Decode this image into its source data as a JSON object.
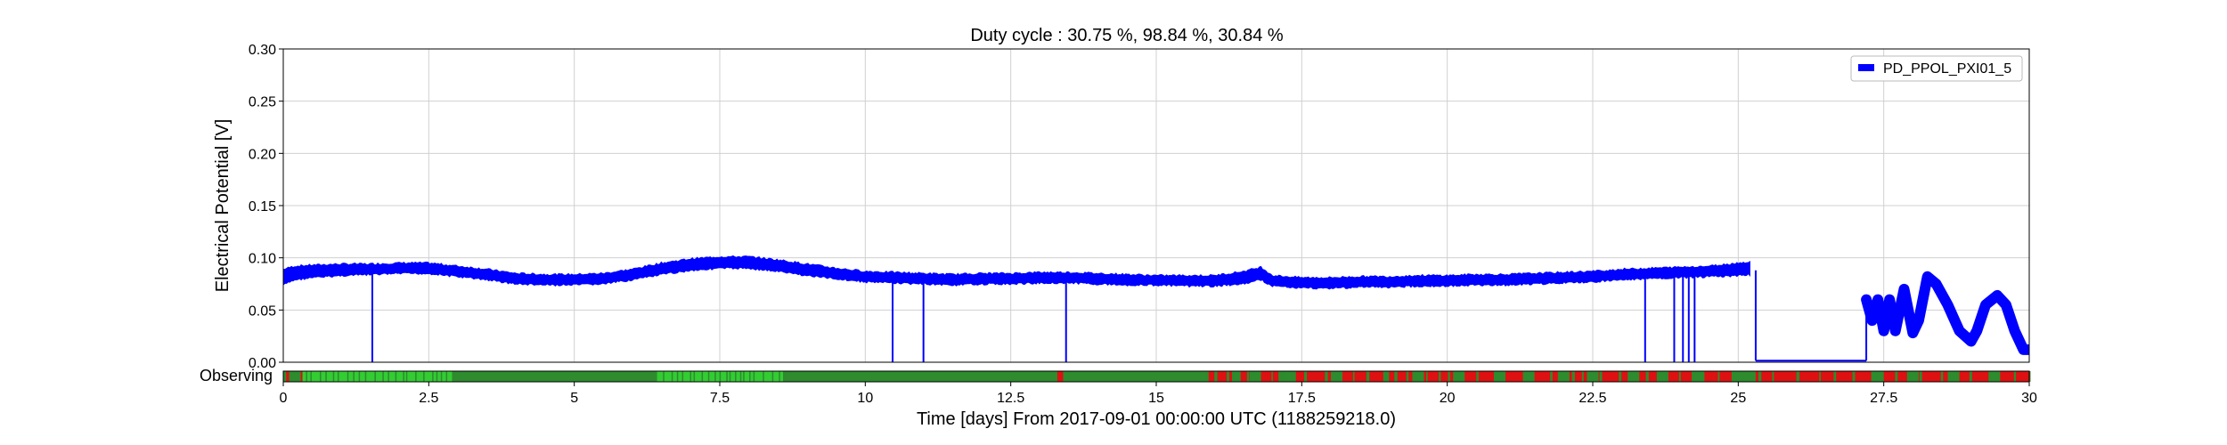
{
  "chart_data": {
    "type": "line",
    "title": "Duty cycle : 30.75 %, 98.84 %, 30.84 %",
    "xlabel": "Time [days] From 2017-09-01 00:00:00 UTC (1188259218.0)",
    "ylabel": "Electrical Potential [V]",
    "xlim": [
      0,
      30
    ],
    "ylim": [
      0,
      0.3
    ],
    "grid": true,
    "legend_position": "top-right",
    "x_ticks": [
      "0",
      "2.5",
      "5",
      "7.5",
      "10",
      "12.5",
      "15",
      "17.5",
      "20",
      "22.5",
      "25",
      "27.5",
      "30"
    ],
    "y_ticks": [
      "0.00",
      "0.05",
      "0.10",
      "0.15",
      "0.20",
      "0.25",
      "0.30"
    ],
    "series": [
      {
        "name": "PD_PPOL_PXI01_5",
        "color": "#0000ff",
        "band": [
          [
            0.0,
            0.075,
            0.088
          ],
          [
            0.2,
            0.08,
            0.091
          ],
          [
            0.5,
            0.082,
            0.092
          ],
          [
            1.0,
            0.084,
            0.093
          ],
          [
            1.5,
            0.085,
            0.093
          ],
          [
            2.0,
            0.086,
            0.094
          ],
          [
            2.5,
            0.086,
            0.094
          ],
          [
            3.0,
            0.083,
            0.091
          ],
          [
            3.5,
            0.08,
            0.088
          ],
          [
            4.0,
            0.076,
            0.084
          ],
          [
            4.5,
            0.075,
            0.083
          ],
          [
            5.0,
            0.075,
            0.083
          ],
          [
            5.5,
            0.076,
            0.084
          ],
          [
            6.0,
            0.08,
            0.088
          ],
          [
            6.5,
            0.085,
            0.094
          ],
          [
            7.0,
            0.089,
            0.098
          ],
          [
            7.5,
            0.091,
            0.1
          ],
          [
            8.0,
            0.091,
            0.1
          ],
          [
            8.5,
            0.088,
            0.097
          ],
          [
            9.0,
            0.084,
            0.093
          ],
          [
            9.5,
            0.081,
            0.089
          ],
          [
            10.0,
            0.078,
            0.086
          ],
          [
            10.5,
            0.077,
            0.085
          ],
          [
            11.0,
            0.076,
            0.084
          ],
          [
            11.5,
            0.075,
            0.083
          ],
          [
            12.0,
            0.076,
            0.084
          ],
          [
            12.5,
            0.076,
            0.084
          ],
          [
            13.0,
            0.077,
            0.085
          ],
          [
            13.5,
            0.077,
            0.085
          ],
          [
            14.0,
            0.076,
            0.084
          ],
          [
            14.5,
            0.075,
            0.083
          ],
          [
            15.0,
            0.075,
            0.082
          ],
          [
            15.5,
            0.074,
            0.082
          ],
          [
            16.0,
            0.074,
            0.082
          ],
          [
            16.5,
            0.076,
            0.086
          ],
          [
            16.8,
            0.08,
            0.09
          ],
          [
            17.0,
            0.074,
            0.082
          ],
          [
            17.5,
            0.072,
            0.08
          ],
          [
            18.0,
            0.072,
            0.08
          ],
          [
            18.5,
            0.073,
            0.081
          ],
          [
            19.0,
            0.073,
            0.081
          ],
          [
            19.5,
            0.074,
            0.082
          ],
          [
            20.0,
            0.074,
            0.082
          ],
          [
            20.5,
            0.075,
            0.083
          ],
          [
            21.0,
            0.075,
            0.083
          ],
          [
            21.5,
            0.076,
            0.084
          ],
          [
            22.0,
            0.077,
            0.085
          ],
          [
            22.5,
            0.078,
            0.086
          ],
          [
            23.0,
            0.08,
            0.088
          ],
          [
            23.5,
            0.081,
            0.089
          ],
          [
            24.0,
            0.082,
            0.09
          ],
          [
            24.5,
            0.083,
            0.091
          ],
          [
            25.0,
            0.084,
            0.094
          ],
          [
            25.2,
            0.085,
            0.095
          ]
        ],
        "dropouts": [
          1.53,
          10.47,
          11.0,
          13.45,
          23.4,
          23.9,
          24.05,
          24.15,
          24.25
        ],
        "gap": {
          "x": [
            25.3,
            27.2
          ],
          "y": 0.0015
        },
        "tail": [
          [
            27.2,
            0.06
          ],
          [
            27.3,
            0.04
          ],
          [
            27.4,
            0.06
          ],
          [
            27.5,
            0.03
          ],
          [
            27.6,
            0.06
          ],
          [
            27.7,
            0.03
          ],
          [
            27.85,
            0.07
          ],
          [
            28.0,
            0.028
          ],
          [
            28.1,
            0.04
          ],
          [
            28.25,
            0.082
          ],
          [
            28.4,
            0.075
          ],
          [
            28.6,
            0.055
          ],
          [
            28.8,
            0.03
          ],
          [
            29.0,
            0.02
          ],
          [
            29.1,
            0.03
          ],
          [
            29.25,
            0.055
          ],
          [
            29.45,
            0.064
          ],
          [
            29.6,
            0.055
          ],
          [
            29.75,
            0.03
          ],
          [
            29.9,
            0.012
          ],
          [
            30.0,
            0.012
          ]
        ]
      }
    ],
    "segment_bar": {
      "label": "Observing",
      "color_on": "#2e8b2e",
      "color_on_bright": "#33cc33",
      "color_off": "#dd1111",
      "bright_spans": [
        [
          0.3,
          2.9
        ],
        [
          6.4,
          8.6
        ]
      ],
      "off_spans": [
        [
          0.05,
          0.1
        ],
        [
          0.3,
          0.33
        ],
        [
          13.3,
          13.4
        ],
        [
          15.9,
          16.0
        ],
        [
          16.0,
          16.3
        ],
        [
          16.45,
          16.6
        ],
        [
          16.8,
          17.1
        ],
        [
          17.4,
          18.0
        ],
        [
          18.2,
          18.9
        ],
        [
          19.0,
          19.4
        ],
        [
          19.6,
          20.1
        ],
        [
          20.3,
          20.8
        ],
        [
          21.0,
          21.3
        ],
        [
          21.5,
          21.9
        ],
        [
          22.1,
          22.4
        ],
        [
          22.6,
          23.1
        ],
        [
          23.3,
          23.6
        ],
        [
          23.8,
          24.2
        ],
        [
          24.4,
          24.9
        ],
        [
          25.3,
          27.3
        ],
        [
          27.5,
          27.9
        ],
        [
          28.1,
          28.6
        ],
        [
          28.8,
          29.3
        ],
        [
          29.5,
          30.0
        ]
      ]
    }
  }
}
